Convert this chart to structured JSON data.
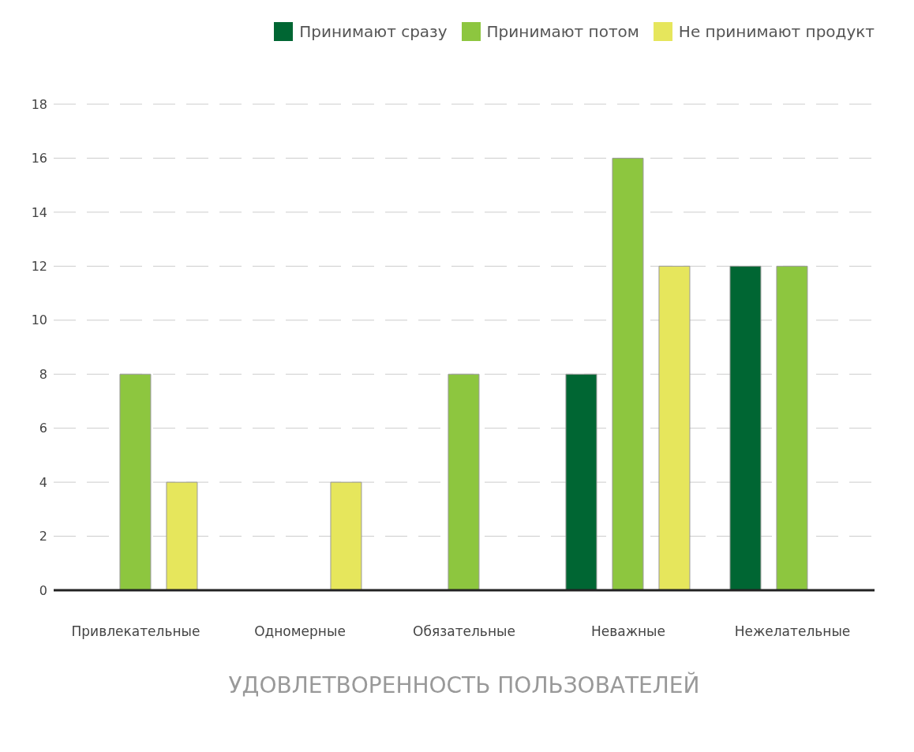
{
  "chart_data": {
    "type": "bar",
    "xlabel": "УДОВЛЕТВОРЕННОСТЬ ПОЛЬЗОВАТЕЛЕЙ",
    "categories": [
      "Привлекательные",
      "Одномерные",
      "Обязательные",
      "Неважные",
      "Нежелательные"
    ],
    "series": [
      {
        "name": "Принимают сразу",
        "color": "#006633",
        "values": [
          0,
          0,
          0,
          8,
          12
        ]
      },
      {
        "name": "Принимают потом",
        "color": "#8dc63f",
        "values": [
          8,
          0,
          8,
          16,
          12
        ]
      },
      {
        "name": "Не принимают продукт",
        "color": "#e6e65c",
        "values": [
          4,
          4,
          0,
          12,
          0
        ]
      }
    ],
    "ylim": [
      0,
      18
    ],
    "yticks": [
      0,
      2,
      4,
      6,
      8,
      10,
      12,
      14,
      16,
      18
    ],
    "grid": "y",
    "legend": "top right"
  }
}
